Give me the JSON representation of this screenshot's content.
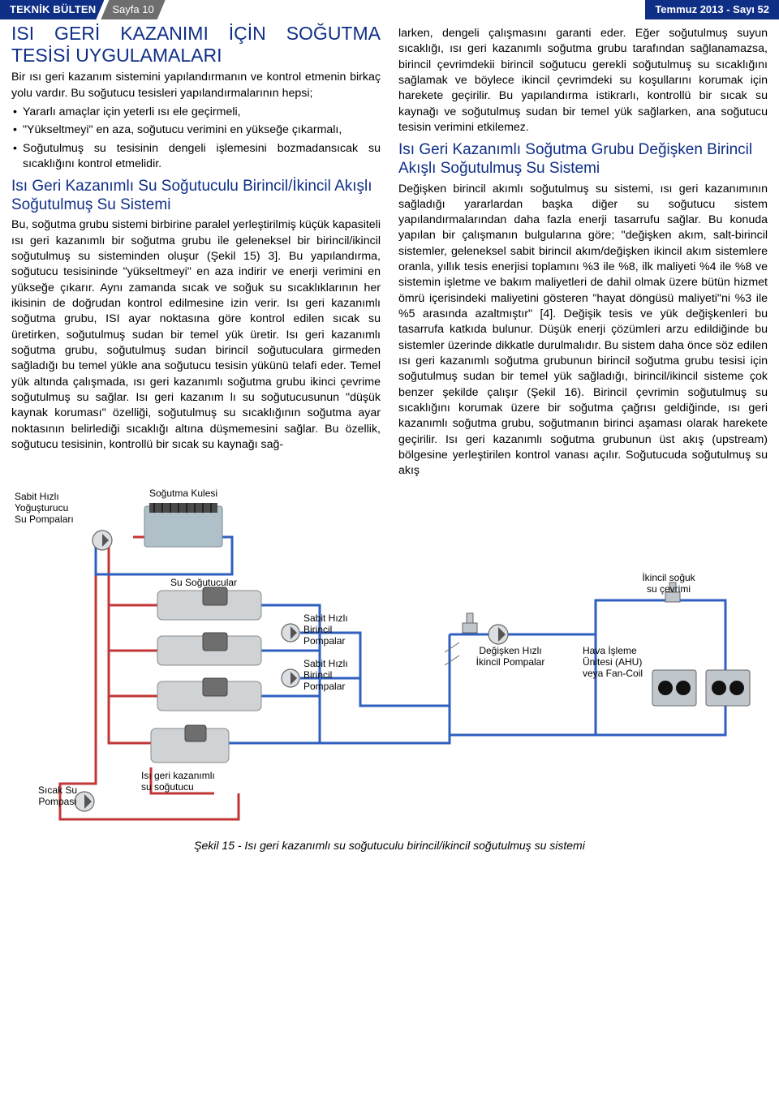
{
  "header": {
    "bulletin": "TEKNİK BÜLTEN",
    "page": "Sayfa 10",
    "issue": "Temmuz 2013 - Sayı 52"
  },
  "left": {
    "title": "ISI GERİ KAZANIMI İÇİN SOĞUTMA TESİSİ UYGULAMALARI",
    "intro": "Bir ısı geri kazanım sistemini yapılandırmanın ve kontrol etmenin birkaç yolu vardır. Bu soğutucu tesisleri yapılandırmalarının hepsi;",
    "b1": "Yararlı amaçlar için yeterli ısı ele geçirmeli,",
    "b2": "\"Yükseltmeyi\" en aza, soğutucu verimini en yükseğe çıkarmalı,",
    "b3": "Soğutulmuş su tesisinin dengeli işlemesini bozmadansıcak su sıcaklığını kontrol etmelidir.",
    "h2a": "Isı Geri Kazanımlı Su Soğutuculu Birincil/İkincil Akışlı Soğutulmuş Su Sistemi",
    "p2": "Bu, soğutma grubu sistemi birbirine paralel yerleştirilmiş küçük kapasiteli ısı geri kazanımlı bir soğutma grubu ile geleneksel bir birincil/ikincil soğutulmuş su sisteminden oluşur (Şekil 15) 3]. Bu yapılandırma, soğutucu tesisininde \"yükseltmeyi\" en aza indirir ve enerji verimini en yükseğe çıkarır. Aynı zamanda sıcak ve soğuk su sıcaklıklarının her ikisinin de doğrudan kontrol edilmesine izin verir. Isı geri kazanımlı soğutma grubu, ISI ayar noktasına göre kontrol edilen sıcak su üretirken, soğutulmuş sudan bir temel yük üretir. Isı geri kazanımlı soğutma grubu, soğutulmuş sudan birincil soğutuculara girmeden sağladığı bu temel yükle ana soğutucu tesisin yükünü telafi eder. Temel yük altında çalışmada, ısı geri kazanımlı soğutma grubu ikinci çevrime soğutulmuş su sağlar. Isı geri kazanım lı su soğutucusunun \"düşük kaynak koruması\" özelliği, soğutulmuş su sıcaklığının soğutma ayar noktasının belirlediği sıcaklığı altına düşmemesini sağlar. Bu özellik, soğutucu tesisinin, kontrollü bir sıcak su kaynağı sağ-"
  },
  "right": {
    "p1": "larken, dengeli çalışmasını garanti eder. Eğer soğutulmuş suyun sıcaklığı, ısı geri kazanımlı soğutma grubu tarafından sağlanamazsa, birincil çevrimdekii birincil soğutucu gerekli soğutulmuş su sıcaklığını sağlamak ve böylece ikincil çevrimdeki su koşullarını korumak için harekete geçirilir. Bu yapılandırma istikrarlı, kontrollü bir sıcak su kaynağı ve soğutulmuş sudan bir temel yük sağlarken, ana soğutucu tesisin verimini etkilemez.",
    "h2b": "Isı Geri Kazanımlı Soğutma Grubu Değişken Birincil Akışlı Soğutulmuş Su Sistemi",
    "p2": "Değişken birincil akımlı soğutulmuş su sistemi, ısı geri kazanımının sağladığı yararlardan başka diğer su soğutucu sistem yapılandırmalarından daha fazla enerji tasarrufu sağlar. Bu konuda yapılan bir çalışmanın bulgularına göre; \"değişken akım, salt-birincil sistemler, geleneksel sabit birincil akım/değişken ikincil akım sistemlere oranla, yıllık tesis enerjisi toplamını %3 ile %8, ilk maliyeti %4 ile %8 ve sistemin işletme ve bakım maliyetleri de dahil olmak üzere bütün hizmet ömrü içerisindeki maliyetini gösteren \"hayat döngüsü maliyeti\"ni %3 ile %5 arasında azaltmıştır\" [4]. Değişik tesis ve yük değişkenleri bu tasarrufa katkıda bulunur. Düşük enerji çözümleri arzu edildiğinde bu sistemler üzerinde dikkatle durulmalıdır. Bu sistem daha önce söz edilen ısı geri kazanımlı soğutma grubunun birincil soğutma grubu tesisi için soğutulmuş sudan bir temel yük sağladığı, birincil/ikincil sisteme çok benzer şekilde çalışır (Şekil 16). Birincil çevrimin soğutulmuş su sıcaklığını korumak üzere bir soğutma çağrısı geldiğinde, ısı geri kazanımlı soğutma grubu, soğutmanın birinci aşaması olarak harekete geçirilir. Isı geri kazanımlı soğutma grubunun üst akış (upstream) bölgesine yerleştirilen kontrol vanası açılır. Soğutucuda soğutulmuş su akış"
  },
  "diagram": {
    "l_condpump": "Sabit Hızlı Yoğuşturucu\nSu Pompaları",
    "l_tower": "Soğutma Kulesi",
    "l_chillers": "Su Soğutucular",
    "l_prim1": "Sabit Hızlı\nBirincil\nPompalar",
    "l_prim2": "Sabit Hızlı\nBirincil\nPompalar",
    "l_secpump": "Değişken Hızlı\nİkincil Pompalar",
    "l_secloop": "İkincil soğuk\nsu çevrimi",
    "l_ahu": "Hava İşleme\nÜnitesi (AHU)\nveya Fan-Coil",
    "l_hotpump": "Sıcak Su\nPompası",
    "l_hrc": "Isı geri kazanımlı\nsu soğutucu",
    "caption": "Şekil 15 - Isı geri kazanımlı su soğutuculu birincil/ikincil soğutulmuş su sistemi",
    "colors": {
      "red": "#c23636",
      "blue": "#2f5fbf",
      "unit": "#cfd3d6"
    }
  }
}
